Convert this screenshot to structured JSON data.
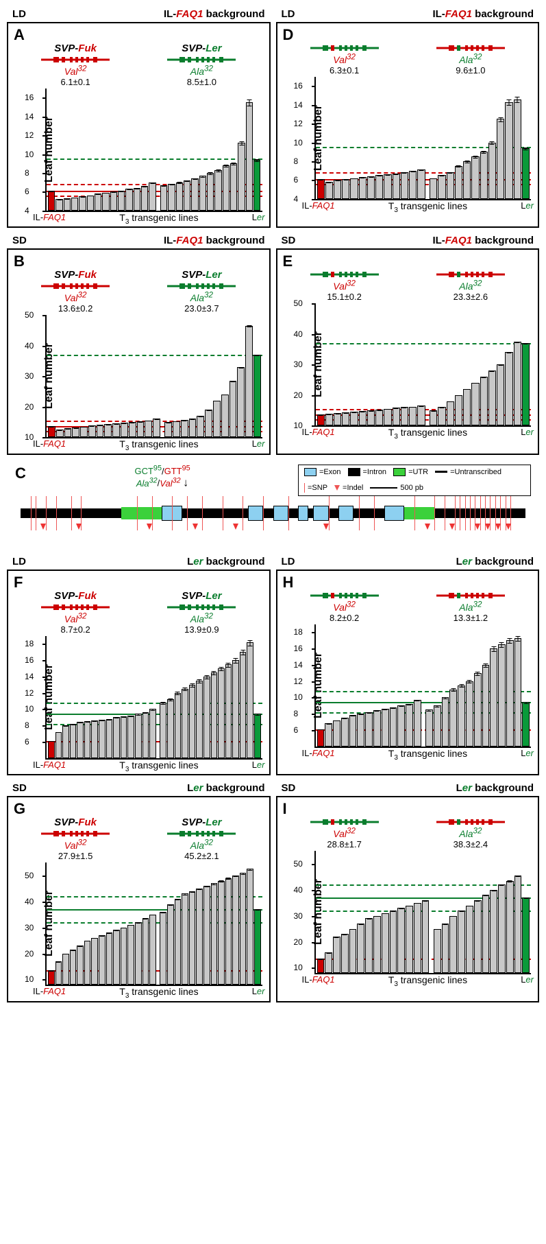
{
  "colors": {
    "red": "#cc0000",
    "green": "#0a7d2d",
    "bar_fill": "#c8c8c8",
    "bar_red": "#cc0000",
    "bar_green": "#0a9a3a",
    "exon": "#8dd0f0",
    "utr": "#3bd13b",
    "snp": "#ee5555"
  },
  "panels": {
    "A": {
      "cond": "LD",
      "bg": "IL-FAQ1 background",
      "bg_class": "red",
      "left": {
        "title": "SVP-Fuk",
        "allele": "Val",
        "sup": "32",
        "stat": "6.1±0.1",
        "color": "red"
      },
      "right": {
        "title": "SVP-Ler",
        "allele": "Ala",
        "sup": "32",
        "stat": "8.5±1.0",
        "color": "green"
      },
      "ymin": 4,
      "ymax": 17,
      "yticks": [
        4,
        6,
        8,
        10,
        12,
        14,
        16
      ],
      "ref_solid_red": 6.1,
      "ref_dash_red_lo": 5.6,
      "ref_dash_red_hi": 6.8,
      "ref_dash_green": 9.5,
      "left_bars": [
        6.1,
        5.2,
        5.3,
        5.4,
        5.5,
        5.6,
        5.8,
        5.9,
        6.0,
        6.1,
        6.3,
        6.4,
        6.6,
        7.0
      ],
      "right_bars": [
        6.7,
        6.8,
        7.0,
        7.2,
        7.4,
        7.7,
        8.0,
        8.3,
        8.8,
        9.0,
        11.2,
        15.5
      ],
      "ler": 9.4
    },
    "B": {
      "cond": "SD",
      "bg": "IL-FAQ1 background",
      "bg_class": "red",
      "left": {
        "title": "SVP-Fuk",
        "allele": "Val",
        "sup": "32",
        "stat": "13.6±0.2",
        "color": "red"
      },
      "right": {
        "title": "SVP-Ler",
        "allele": "Ala",
        "sup": "32",
        "stat": "23.0±3.7",
        "color": "green"
      },
      "ymin": 10,
      "ymax": 50,
      "yticks": [
        10,
        20,
        30,
        40,
        50
      ],
      "ref_solid_red": 13.6,
      "ref_dash_red_lo": 12,
      "ref_dash_red_hi": 15.5,
      "ref_dash_green": 37,
      "left_bars": [
        13.6,
        12.5,
        13,
        13.2,
        13.5,
        13.8,
        14,
        14.2,
        14.5,
        14.8,
        15,
        15.2,
        15.5,
        16
      ],
      "right_bars": [
        15,
        15.3,
        15.6,
        16,
        17,
        19,
        22,
        24,
        28.5,
        33,
        46.5
      ],
      "ler": 37
    },
    "D": {
      "cond": "LD",
      "bg": "IL-FAQ1 background",
      "bg_class": "red",
      "left": {
        "title": "",
        "allele": "Val",
        "sup": "32",
        "stat": "6.3±0.1",
        "color": "red",
        "diagram_color": "green",
        "dot": "red"
      },
      "right": {
        "title": "",
        "allele": "Ala",
        "sup": "32",
        "stat": "9.6±1.0",
        "color": "green",
        "diagram_color": "red",
        "dot": "green"
      },
      "ymin": 4,
      "ymax": 17,
      "yticks": [
        4,
        6,
        8,
        10,
        12,
        14,
        16
      ],
      "ref_solid_red": 6.1,
      "ref_dash_red_lo": 5.6,
      "ref_dash_red_hi": 6.8,
      "ref_dash_green": 9.5,
      "left_bars": [
        6.1,
        5.8,
        6.0,
        6.1,
        6.2,
        6.3,
        6.4,
        6.5,
        6.6,
        6.7,
        6.8,
        7.0,
        7.1
      ],
      "right_bars": [
        6.2,
        6.5,
        6.8,
        7.5,
        8.0,
        8.5,
        9.0,
        10,
        12.5,
        14.3,
        14.6
      ],
      "ler": 9.4
    },
    "E": {
      "cond": "SD",
      "bg": "IL-FAQ1 background",
      "bg_class": "red",
      "left": {
        "title": "",
        "allele": "Val",
        "sup": "32",
        "stat": "15.1±0.2",
        "color": "red",
        "diagram_color": "green",
        "dot": "red"
      },
      "right": {
        "title": "",
        "allele": "Ala",
        "sup": "32",
        "stat": "23.3±2.6",
        "color": "green",
        "diagram_color": "red",
        "dot": "green"
      },
      "ymin": 10,
      "ymax": 50,
      "yticks": [
        10,
        20,
        30,
        40,
        50
      ],
      "ref_solid_red": 13.6,
      "ref_dash_red_lo": 12,
      "ref_dash_red_hi": 15.5,
      "ref_dash_green": 37,
      "left_bars": [
        13.6,
        13.8,
        14,
        14.2,
        14.5,
        14.8,
        15,
        15.2,
        15.5,
        15.8,
        16,
        16.2,
        16.5
      ],
      "right_bars": [
        15,
        16,
        18,
        20,
        22,
        24,
        26,
        28,
        30,
        34,
        37.5
      ],
      "ler": 37
    },
    "F": {
      "cond": "LD",
      "bg": "Ler background",
      "bg_class": "green",
      "left": {
        "title": "SVP-Fuk",
        "allele": "Val",
        "sup": "32",
        "stat": "8.7±0.2",
        "color": "red"
      },
      "right": {
        "title": "SVP-Ler",
        "allele": "Ala",
        "sup": "32",
        "stat": "13.9±0.9",
        "color": "green"
      },
      "ymin": 4,
      "ymax": 19,
      "yticks": [
        6,
        8,
        10,
        12,
        14,
        16,
        18
      ],
      "ref_solid_green": 9.4,
      "ref_dash_green_lo": 8.2,
      "ref_dash_green_hi": 10.8,
      "ref_dash_red": 6.1,
      "left_bars": [
        6.1,
        7.2,
        8,
        8.2,
        8.4,
        8.5,
        8.6,
        8.7,
        8.8,
        9,
        9.1,
        9.2,
        9.4,
        9.6,
        10
      ],
      "right_bars": [
        10.8,
        11.2,
        12,
        12.5,
        13,
        13.5,
        14,
        14.5,
        15,
        15.5,
        16,
        17,
        18.2
      ],
      "ler": 9.4
    },
    "G": {
      "cond": "SD",
      "bg": "Ler background",
      "bg_class": "green",
      "left": {
        "title": "SVP-Fuk",
        "allele": "Val",
        "sup": "32",
        "stat": "27.9±1.5",
        "color": "red"
      },
      "right": {
        "title": "SVP-Ler",
        "allele": "Ala",
        "sup": "32",
        "stat": "45.2±2.1",
        "color": "green"
      },
      "ymin": 8,
      "ymax": 55,
      "yticks": [
        10,
        20,
        30,
        40,
        50
      ],
      "ref_solid_green": 37,
      "ref_dash_green_lo": 32,
      "ref_dash_green_hi": 42,
      "ref_dash_red": 13.6,
      "left_bars": [
        13.6,
        17,
        20,
        21.5,
        23,
        25,
        26,
        27,
        28,
        29,
        30,
        31,
        32,
        33.5,
        35
      ],
      "right_bars": [
        36,
        39,
        41,
        43,
        44,
        45,
        46,
        47,
        48,
        49,
        50,
        51,
        52.5
      ],
      "ler": 37
    },
    "H": {
      "cond": "LD",
      "bg": "Ler background",
      "bg_class": "green",
      "left": {
        "title": "",
        "allele": "Val",
        "sup": "32",
        "stat": "8.2±0.2",
        "color": "red",
        "diagram_color": "green",
        "dot": "red"
      },
      "right": {
        "title": "",
        "allele": "Ala",
        "sup": "32",
        "stat": "13.3±1.2",
        "color": "green",
        "diagram_color": "red",
        "dot": "green"
      },
      "ymin": 4,
      "ymax": 19,
      "yticks": [
        6,
        8,
        10,
        12,
        14,
        16,
        18
      ],
      "ref_solid_green": 9.4,
      "ref_dash_green_lo": 8.2,
      "ref_dash_green_hi": 10.8,
      "ref_dash_red": 6.1,
      "left_bars": [
        6.1,
        6.8,
        7.2,
        7.5,
        7.8,
        8,
        8.2,
        8.4,
        8.6,
        8.8,
        9,
        9.2,
        9.7
      ],
      "right_bars": [
        8.5,
        9,
        10,
        11,
        11.5,
        12,
        13,
        14,
        16,
        16.5,
        17,
        17.3
      ],
      "ler": 9.4
    },
    "I": {
      "cond": "SD",
      "bg": "Ler background",
      "bg_class": "green",
      "left": {
        "title": "",
        "allele": "Val",
        "sup": "32",
        "stat": "28.8±1.7",
        "color": "red",
        "diagram_color": "green",
        "dot": "red"
      },
      "right": {
        "title": "",
        "allele": "Ala",
        "sup": "32",
        "stat": "38.3±2.4",
        "color": "green",
        "diagram_color": "red",
        "dot": "green"
      },
      "ymin": 8,
      "ymax": 55,
      "yticks": [
        10,
        20,
        30,
        40,
        50
      ],
      "ref_solid_green": 37,
      "ref_dash_green_lo": 32,
      "ref_dash_green_hi": 42,
      "ref_dash_red": 13.6,
      "left_bars": [
        13.6,
        16,
        22,
        23,
        25,
        27,
        29,
        30,
        31,
        32,
        33,
        34,
        35,
        36
      ],
      "right_bars": [
        25,
        27,
        30,
        32,
        34,
        36,
        38,
        40,
        42,
        43.5,
        45.5
      ],
      "ler": 37
    }
  },
  "diagram": {
    "letter": "C",
    "codon_top": "GCT⁹⁵/GTT⁹⁵",
    "aa_green": "Ala",
    "aa_red": "Val",
    "aa_sup": "32",
    "exons_pct": [
      [
        28,
        4
      ],
      [
        45,
        3
      ],
      [
        50,
        3
      ],
      [
        55,
        2
      ],
      [
        58,
        3
      ],
      [
        63,
        3
      ],
      [
        72,
        4
      ]
    ],
    "utr_pct": [
      [
        20,
        8
      ],
      [
        76,
        6
      ]
    ],
    "snps_pct": [
      2,
      3,
      5,
      7,
      10,
      12,
      23,
      26,
      30,
      33,
      36,
      40,
      44,
      48,
      53,
      61,
      67,
      70,
      78,
      82,
      84,
      86,
      87,
      88,
      89,
      90,
      91,
      92,
      93,
      94,
      95,
      96,
      97
    ],
    "indels_pct": [
      4,
      11,
      25,
      34,
      42,
      60,
      80,
      85,
      90,
      92,
      94,
      96
    ],
    "legend": {
      "exon": "=Exon",
      "intron": "=Intron",
      "utr": "=UTR",
      "untrans": "=Untranscribed",
      "snp": "=SNP",
      "indel": "=Indel",
      "scale": "500 pb"
    }
  },
  "labels": {
    "ylabel": "Leaf number",
    "xlabel": "T₃ transgenic lines",
    "il_faq": "IL-FAQ1",
    "ler": "Ler"
  }
}
